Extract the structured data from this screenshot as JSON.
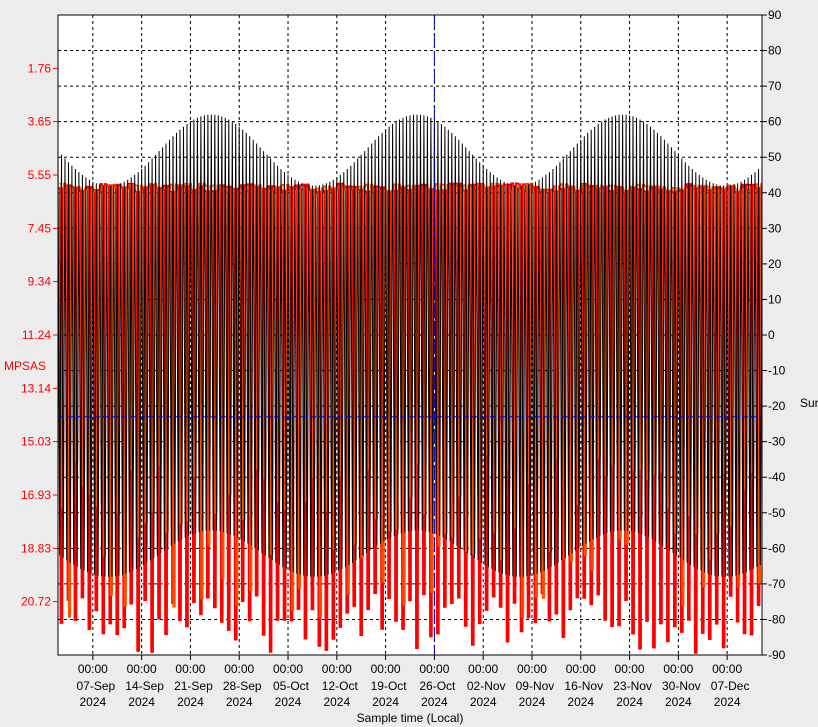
{
  "chart_data": {
    "type": "line",
    "xlabel": "Sample time (Local)",
    "ylabel_left": "MPSAS",
    "ylabel_right": "Sun",
    "grid": true,
    "left_axis": {
      "ticks": [
        "1.76",
        "3.65",
        "5.55",
        "7.45",
        "9.34",
        "11.24",
        "13.14",
        "15.03",
        "16.93",
        "18.83",
        "20.72"
      ],
      "range": [
        -0.14,
        22.62
      ],
      "inverted": true,
      "color": "#ff0000"
    },
    "right_axis": {
      "ticks": [
        90,
        80,
        70,
        60,
        50,
        40,
        30,
        20,
        10,
        0,
        -10,
        -20,
        -30,
        -40,
        -50,
        -60,
        -70,
        -80,
        -90
      ],
      "range": [
        -90,
        90
      ]
    },
    "x_axis": {
      "range": [
        "2024-09-02",
        "2024-12-12"
      ],
      "ticks": [
        {
          "time": "00:00",
          "date": "07-Sep",
          "year": "2024"
        },
        {
          "time": "00:00",
          "date": "14-Sep",
          "year": "2024"
        },
        {
          "time": "00:00",
          "date": "21-Sep",
          "year": "2024"
        },
        {
          "time": "00:00",
          "date": "28-Sep",
          "year": "2024"
        },
        {
          "time": "00:00",
          "date": "05-Oct",
          "year": "2024"
        },
        {
          "time": "00:00",
          "date": "12-Oct",
          "year": "2024"
        },
        {
          "time": "00:00",
          "date": "19-Oct",
          "year": "2024"
        },
        {
          "time": "00:00",
          "date": "26-Oct",
          "year": "2024"
        },
        {
          "time": "00:00",
          "date": "02-Nov",
          "year": "2024"
        },
        {
          "time": "00:00",
          "date": "09-Nov",
          "year": "2024"
        },
        {
          "time": "00:00",
          "date": "16-Nov",
          "year": "2024"
        },
        {
          "time": "00:00",
          "date": "23-Nov",
          "year": "2024"
        },
        {
          "time": "00:00",
          "date": "30-Nov",
          "year": "2024"
        },
        {
          "time": "00:00",
          "date": "07-Dec",
          "year": "2024"
        }
      ]
    },
    "series": [
      {
        "color": "#ff0000",
        "axis": "left",
        "day_value": 6.0,
        "night_value": 21.5,
        "pattern": "daily"
      },
      {
        "color": "#ff5000",
        "axis": "left",
        "day_value": 6.0,
        "night_value": 18.5,
        "pattern": "daily"
      },
      {
        "color": "#000000",
        "axis": "right",
        "max_range": [
          42,
          62
        ],
        "min_range": [
          -55,
          -68
        ],
        "pattern": "daily"
      }
    ],
    "cursor": {
      "date": "2024-10-26",
      "right_value": -23
    }
  }
}
